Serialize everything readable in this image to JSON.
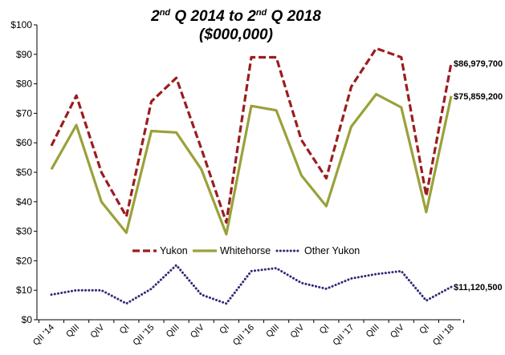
{
  "chart_data": {
    "type": "line",
    "title": {
      "line1_a": "2",
      "line1_sup": "nd",
      "line1_b": " Q 2014 to 2",
      "line1_sup2": "nd",
      "line1_c": " Q 2018",
      "line2": "($000,000)"
    },
    "xlabel": "",
    "ylabel": "",
    "ylim": [
      0,
      100
    ],
    "yticks": [
      "$0",
      "$10",
      "$20",
      "$30",
      "$40",
      "$50",
      "$60",
      "$70",
      "$80",
      "$90",
      "$100"
    ],
    "categories": [
      "QII '14",
      "QIII",
      "QIV",
      "QI",
      "QII '15",
      "QIII",
      "QIV",
      "QI",
      "QII '16",
      "QIII",
      "QIV",
      "QI",
      "QII '17",
      "QIII",
      "QIV",
      "QI",
      "QII '18"
    ],
    "legend_position": "inside-lower-center",
    "grid": false,
    "series": [
      {
        "name": "Yukon",
        "color": "#9b1c1f",
        "style": "dashed",
        "values": [
          59,
          76,
          50,
          35,
          74,
          82,
          58,
          33,
          89,
          89,
          61,
          48,
          79,
          92,
          89,
          42,
          86.98
        ],
        "end_label": "$86,979,700"
      },
      {
        "name": "Whitehorse",
        "color": "#9aa13a",
        "style": "solid",
        "values": [
          51,
          66,
          40,
          29.5,
          64,
          63.5,
          51,
          29,
          72.5,
          71,
          49,
          38.5,
          65.5,
          76.5,
          72,
          36.5,
          75.86
        ],
        "end_label": "$75,859,200"
      },
      {
        "name": "Other Yukon",
        "color": "#2e2a78",
        "style": "dotted",
        "values": [
          8.5,
          10,
          10,
          5.5,
          10.5,
          18.5,
          8.5,
          5.5,
          16.5,
          17.5,
          12.5,
          10.5,
          14,
          15.5,
          16.5,
          6.5,
          11.12
        ],
        "end_label": "$11,120,500"
      }
    ]
  }
}
